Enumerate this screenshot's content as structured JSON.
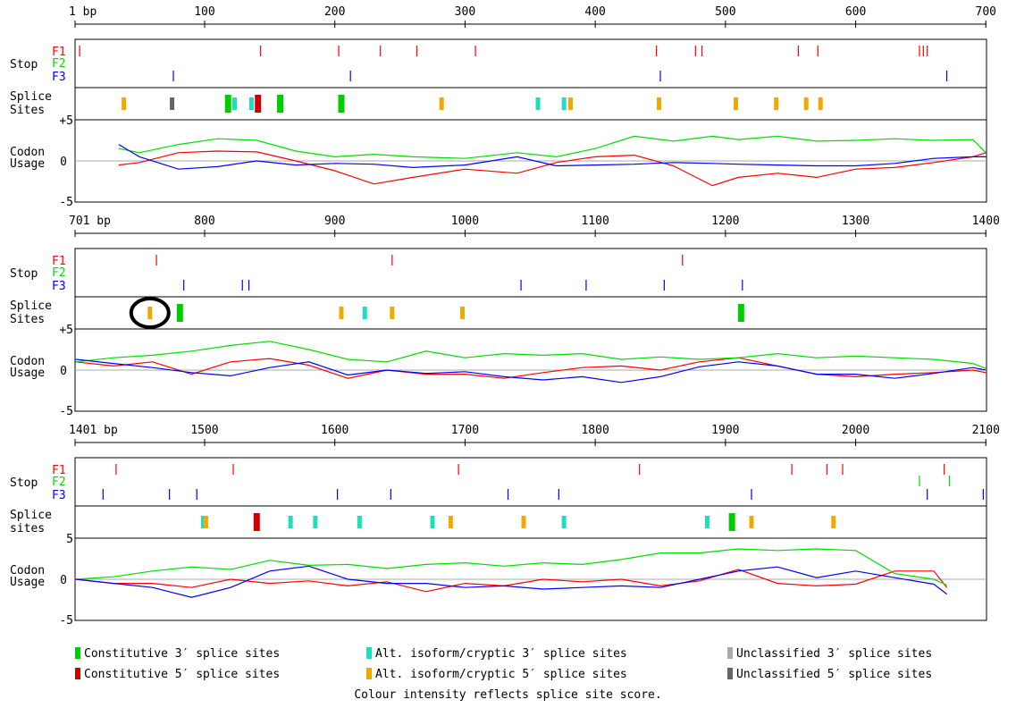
{
  "colors": {
    "F1": "#ff0000",
    "F2": "#00dd00",
    "F3": "#0000ff",
    "const3": "#00cc00",
    "const5": "#cc0000",
    "alt3": "#22ddbb",
    "alt5": "#eeaa00",
    "uncl3": "#aaaaaa",
    "uncl5": "#666666"
  },
  "chart_data": {
    "type": "line",
    "title": "",
    "panels": [
      {
        "start": 1,
        "end": 700,
        "start_label": "1 bp",
        "ticks": [
          100,
          200,
          300,
          400,
          500,
          600,
          700
        ],
        "tick_labels": [
          "100",
          "200",
          "300",
          "400",
          "500",
          "600",
          "700"
        ],
        "stop_label": "Stop",
        "frame_labels": [
          "F1",
          "F2",
          "F3"
        ],
        "splice_label_1": "Splice",
        "splice_label_2": "Sites",
        "codon_label_1": "Codon",
        "codon_label_2": "Usage",
        "y_ticks": [
          "+5",
          "0",
          "-5"
        ],
        "ylim": [
          -5,
          5
        ],
        "stops": {
          "F1": [
            4,
            143,
            203,
            235,
            263,
            308,
            447,
            477,
            482,
            556,
            571,
            649,
            652,
            655
          ],
          "F2": [],
          "F3": [
            76,
            212,
            450,
            670
          ]
        },
        "splice_sites": [
          {
            "pos": 38,
            "type": "alt5",
            "score": 1
          },
          {
            "pos": 75,
            "type": "uncl5",
            "score": 1
          },
          {
            "pos": 118,
            "type": "const3",
            "score": 2
          },
          {
            "pos": 123,
            "type": "alt3",
            "score": 1
          },
          {
            "pos": 136,
            "type": "alt3",
            "score": 1
          },
          {
            "pos": 141,
            "type": "const5",
            "score": 2
          },
          {
            "pos": 158,
            "type": "const3",
            "score": 2
          },
          {
            "pos": 205,
            "type": "const3",
            "score": 2
          },
          {
            "pos": 282,
            "type": "alt5",
            "score": 1
          },
          {
            "pos": 356,
            "type": "alt3",
            "score": 1
          },
          {
            "pos": 376,
            "type": "alt3",
            "score": 1
          },
          {
            "pos": 381,
            "type": "alt5",
            "score": 1
          },
          {
            "pos": 449,
            "type": "alt5",
            "score": 1
          },
          {
            "pos": 508,
            "type": "alt5",
            "score": 1
          },
          {
            "pos": 539,
            "type": "alt5",
            "score": 1
          },
          {
            "pos": 562,
            "type": "alt5",
            "score": 1
          },
          {
            "pos": 573,
            "type": "alt5",
            "score": 1
          }
        ],
        "codon_series": [
          {
            "frame": "F1",
            "x": [
              34,
              50,
              80,
              110,
              140,
              170,
              200,
              230,
              260,
              300,
              340,
              370,
              400,
              430,
              460,
              490,
              510,
              540,
              570,
              600,
              630,
              660,
              690,
              700
            ],
            "y": [
              -0.5,
              -0.2,
              1.0,
              1.2,
              1.1,
              0.0,
              -1.2,
              -2.8,
              -2.0,
              -1.0,
              -1.5,
              -0.2,
              0.5,
              0.7,
              -0.6,
              -3.0,
              -2.0,
              -1.5,
              -2.0,
              -1.0,
              -0.8,
              -0.2,
              0.5,
              1.0
            ]
          },
          {
            "frame": "F2",
            "x": [
              34,
              50,
              80,
              110,
              140,
              170,
              200,
              230,
              260,
              300,
              340,
              370,
              400,
              430,
              460,
              490,
              510,
              540,
              570,
              600,
              630,
              660,
              690,
              700
            ],
            "y": [
              1.5,
              1.0,
              2.0,
              2.7,
              2.5,
              1.2,
              0.5,
              0.8,
              0.5,
              0.3,
              1.0,
              0.5,
              1.5,
              3.0,
              2.4,
              3.0,
              2.6,
              3.0,
              2.4,
              2.5,
              2.7,
              2.5,
              2.6,
              1.0
            ]
          },
          {
            "frame": "F3",
            "x": [
              34,
              50,
              80,
              110,
              140,
              170,
              200,
              230,
              260,
              300,
              340,
              370,
              400,
              430,
              460,
              490,
              510,
              540,
              570,
              600,
              630,
              660,
              690,
              700
            ],
            "y": [
              2.0,
              0.5,
              -1.0,
              -0.7,
              0.0,
              -0.5,
              -0.3,
              -0.4,
              -0.8,
              -0.5,
              0.5,
              -0.6,
              -0.5,
              -0.4,
              -0.2,
              -0.3,
              -0.4,
              -0.5,
              -0.6,
              -0.6,
              -0.3,
              0.3,
              0.5,
              0.5
            ]
          }
        ]
      },
      {
        "start": 701,
        "end": 1400,
        "start_label": "701 bp",
        "ticks": [
          800,
          900,
          1000,
          1100,
          1200,
          1300,
          1400
        ],
        "tick_labels": [
          "800",
          "900",
          "1000",
          "1100",
          "1200",
          "1300",
          "1400"
        ],
        "stop_label": "Stop",
        "frame_labels": [
          "F1",
          "F2",
          "F3"
        ],
        "splice_label_1": "Splice",
        "splice_label_2": "Sites",
        "codon_label_1": "Codon",
        "codon_label_2": "Usage",
        "y_ticks": [
          "+5",
          "0",
          "-5"
        ],
        "ylim": [
          -5,
          5
        ],
        "stops": {
          "F1": [
            763,
            944,
            1167
          ],
          "F2": [],
          "F3": [
            784,
            829,
            834,
            1043,
            1093,
            1153,
            1213
          ]
        },
        "splice_sites": [
          {
            "pos": 758,
            "type": "alt5",
            "score": 1
          },
          {
            "pos": 781,
            "type": "const3",
            "score": 2
          },
          {
            "pos": 905,
            "type": "alt5",
            "score": 1
          },
          {
            "pos": 923,
            "type": "alt3",
            "score": 1
          },
          {
            "pos": 944,
            "type": "alt5",
            "score": 1
          },
          {
            "pos": 998,
            "type": "alt5",
            "score": 1
          },
          {
            "pos": 1212,
            "type": "const3",
            "score": 2
          }
        ],
        "circle_at": 758,
        "codon_series": [
          {
            "frame": "F1",
            "x": [
              701,
              730,
              760,
              790,
              820,
              850,
              880,
              910,
              940,
              970,
              1000,
              1030,
              1060,
              1090,
              1120,
              1150,
              1180,
              1210,
              1240,
              1270,
              1300,
              1330,
              1360,
              1390,
              1400
            ],
            "y": [
              1.0,
              0.5,
              1.0,
              -0.5,
              1.0,
              1.4,
              0.6,
              -1.0,
              0.0,
              -0.5,
              -0.5,
              -1.0,
              -0.3,
              0.3,
              0.5,
              0.0,
              1.0,
              1.5,
              0.5,
              -0.5,
              -0.8,
              -0.5,
              -0.3,
              0.0,
              -0.3
            ]
          },
          {
            "frame": "F2",
            "x": [
              701,
              730,
              760,
              790,
              820,
              850,
              880,
              910,
              940,
              970,
              1000,
              1030,
              1060,
              1090,
              1120,
              1150,
              1180,
              1210,
              1240,
              1270,
              1300,
              1330,
              1360,
              1390,
              1400
            ],
            "y": [
              1.0,
              1.5,
              1.8,
              2.3,
              3.0,
              3.5,
              2.5,
              1.3,
              1.0,
              2.3,
              1.5,
              2.0,
              1.8,
              2.0,
              1.3,
              1.6,
              1.3,
              1.5,
              2.0,
              1.5,
              1.7,
              1.5,
              1.3,
              0.8,
              0.2
            ]
          },
          {
            "frame": "F3",
            "x": [
              701,
              730,
              760,
              790,
              820,
              850,
              880,
              910,
              940,
              970,
              1000,
              1030,
              1060,
              1090,
              1120,
              1150,
              1180,
              1210,
              1240,
              1270,
              1300,
              1330,
              1360,
              1390,
              1400
            ],
            "y": [
              1.3,
              0.8,
              0.3,
              -0.3,
              -0.7,
              0.3,
              1.0,
              -0.6,
              0.0,
              -0.4,
              -0.2,
              -0.8,
              -1.2,
              -0.8,
              -1.5,
              -0.8,
              0.4,
              1.0,
              0.5,
              -0.5,
              -0.5,
              -1.0,
              -0.4,
              0.3,
              0.0
            ]
          }
        ]
      },
      {
        "start": 1401,
        "end": 2100,
        "start_label": "1401 bp",
        "ticks": [
          1500,
          1600,
          1700,
          1800,
          1900,
          2000,
          2100
        ],
        "tick_labels": [
          "1500",
          "1600",
          "1700",
          "1800",
          "1900",
          "2000",
          "2100"
        ],
        "stop_label": "Stop",
        "frame_labels": [
          "F1",
          "F2",
          "F3"
        ],
        "splice_label_1": "Splice",
        "splice_label_2": "sites",
        "codon_label_1": "Codon",
        "codon_label_2": "Usage",
        "y_ticks": [
          "5",
          "0",
          "-5"
        ],
        "ylim": [
          -5,
          5
        ],
        "stops": {
          "F1": [
            1432,
            1522,
            1695,
            1834,
            1951,
            1978,
            1990,
            2068
          ],
          "F2": [
            2049,
            2072
          ],
          "F3": [
            1422,
            1473,
            1494,
            1602,
            1643,
            1733,
            1772,
            1920,
            2055,
            2098
          ]
        },
        "splice_sites": [
          {
            "pos": 1499,
            "type": "alt3",
            "score": 1
          },
          {
            "pos": 1501,
            "type": "alt5",
            "score": 1
          },
          {
            "pos": 1540,
            "type": "const5",
            "score": 2
          },
          {
            "pos": 1566,
            "type": "alt3",
            "score": 1
          },
          {
            "pos": 1585,
            "type": "alt3",
            "score": 1
          },
          {
            "pos": 1619,
            "type": "alt3",
            "score": 1
          },
          {
            "pos": 1675,
            "type": "alt3",
            "score": 1
          },
          {
            "pos": 1689,
            "type": "alt5",
            "score": 1
          },
          {
            "pos": 1745,
            "type": "alt5",
            "score": 1
          },
          {
            "pos": 1776,
            "type": "alt3",
            "score": 1
          },
          {
            "pos": 1886,
            "type": "alt3",
            "score": 1
          },
          {
            "pos": 1905,
            "type": "const3",
            "score": 2
          },
          {
            "pos": 1920,
            "type": "alt5",
            "score": 1
          },
          {
            "pos": 1983,
            "type": "alt5",
            "score": 1
          }
        ],
        "codon_series": [
          {
            "frame": "F1",
            "x": [
              1401,
              1430,
              1460,
              1490,
              1520,
              1550,
              1580,
              1610,
              1640,
              1670,
              1700,
              1730,
              1760,
              1790,
              1820,
              1850,
              1880,
              1910,
              1940,
              1970,
              2000,
              2030,
              2060,
              2070
            ],
            "y": [
              0.0,
              -0.5,
              -0.5,
              -1.0,
              0.0,
              -0.5,
              -0.2,
              -0.8,
              -0.3,
              -1.5,
              -0.5,
              -0.8,
              0.0,
              -0.3,
              0.0,
              -0.8,
              -0.2,
              1.2,
              -0.5,
              -0.8,
              -0.6,
              1.0,
              1.0,
              -1.0
            ]
          },
          {
            "frame": "F2",
            "x": [
              1401,
              1430,
              1460,
              1490,
              1520,
              1550,
              1580,
              1610,
              1640,
              1670,
              1700,
              1730,
              1760,
              1790,
              1820,
              1850,
              1880,
              1910,
              1940,
              1970,
              2000,
              2030,
              2060,
              2070
            ],
            "y": [
              0.0,
              0.3,
              1.0,
              1.5,
              1.2,
              2.3,
              1.7,
              1.8,
              1.3,
              1.8,
              2.0,
              1.6,
              2.0,
              1.8,
              2.4,
              3.2,
              3.2,
              3.7,
              3.5,
              3.7,
              3.5,
              0.7,
              0.0,
              -0.7
            ]
          },
          {
            "frame": "F3",
            "x": [
              1401,
              1430,
              1460,
              1490,
              1520,
              1550,
              1580,
              1610,
              1640,
              1670,
              1700,
              1730,
              1760,
              1790,
              1820,
              1850,
              1880,
              1910,
              1940,
              1970,
              2000,
              2030,
              2060,
              2070
            ],
            "y": [
              0.0,
              -0.5,
              -1.0,
              -2.2,
              -1.0,
              1.0,
              1.6,
              0.0,
              -0.5,
              -0.5,
              -1.0,
              -0.8,
              -1.2,
              -1.0,
              -0.8,
              -1.0,
              0.0,
              1.0,
              1.5,
              0.2,
              1.0,
              0.2,
              -0.6,
              -1.8
            ]
          }
        ]
      }
    ]
  },
  "legend": {
    "const3": "Constitutive 3′ splice sites",
    "const5": "Constitutive 5′ splice sites",
    "alt3": "Alt. isoform/cryptic 3′ splice sites",
    "alt5": "Alt. isoform/cryptic 5′ splice sites",
    "uncl3": "Unclassified 3′ splice sites",
    "uncl5": "Unclassified 5′ splice sites",
    "note": "Colour intensity reflects splice site score."
  }
}
